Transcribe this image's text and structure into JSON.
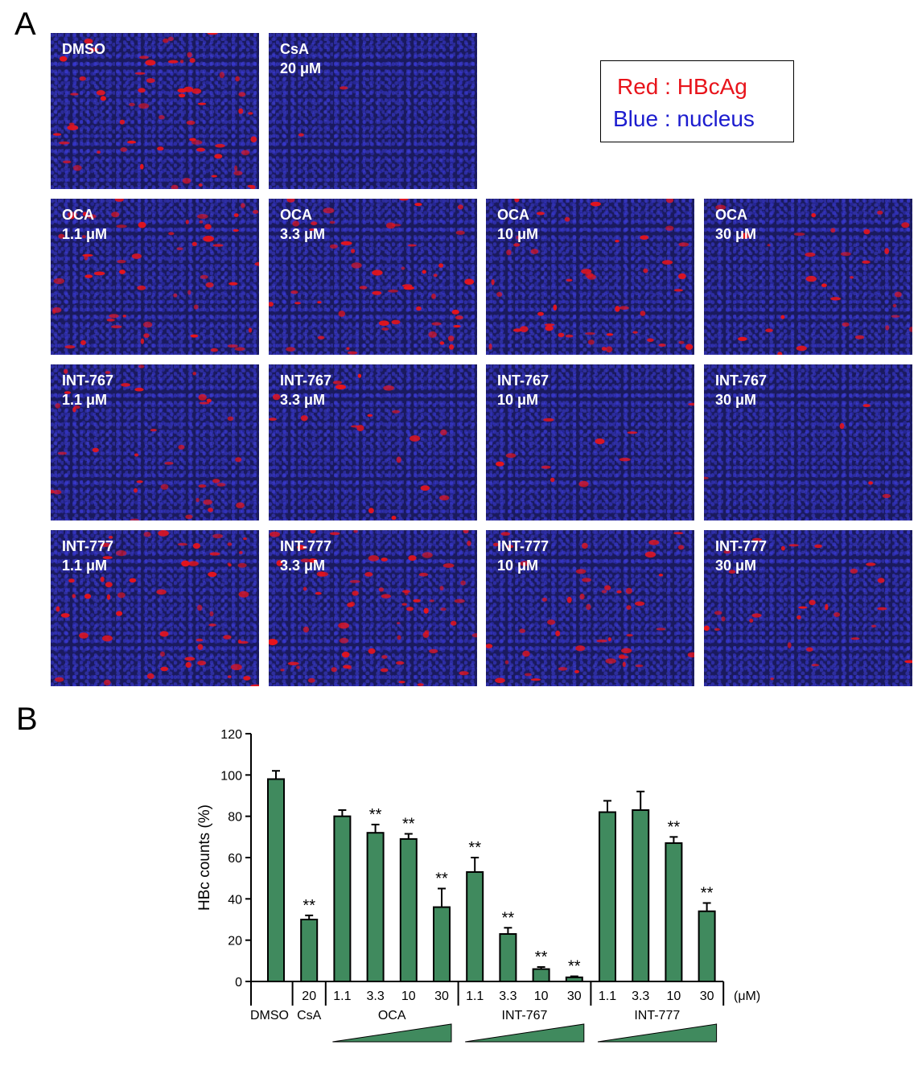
{
  "panel_a_label": "A",
  "panel_b_label": "B",
  "legend": {
    "red": "Red : HBcAg",
    "blue": "Blue : nucleus"
  },
  "colors": {
    "stain_red": "#e8141b",
    "stain_blue": "#1c1ccf",
    "bar": "#408a5e",
    "tile_bg": "#1a1a5e"
  },
  "tiles": [
    {
      "line1": "DMSO",
      "line2": ""
    },
    {
      "line1": "CsA",
      "line2": "20 μM"
    },
    {
      "line1": "OCA",
      "line2": "1.1 μM"
    },
    {
      "line1": "OCA",
      "line2": "3.3 μM"
    },
    {
      "line1": "OCA",
      "line2": "10 μM"
    },
    {
      "line1": "OCA",
      "line2": "30 μM"
    },
    {
      "line1": "INT-767",
      "line2": "1.1 μM"
    },
    {
      "line1": "INT-767",
      "line2": "3.3 μM"
    },
    {
      "line1": "INT-767",
      "line2": "10 μM"
    },
    {
      "line1": "INT-767",
      "line2": "30 μM"
    },
    {
      "line1": "INT-777",
      "line2": "1.1 μM"
    },
    {
      "line1": "INT-777",
      "line2": "3.3 μM"
    },
    {
      "line1": "INT-777",
      "line2": "10 μM"
    },
    {
      "line1": "INT-777",
      "line2": "30 μM"
    }
  ],
  "chart_data": {
    "type": "bar",
    "ylabel": "HBc counts (%)",
    "ylim": [
      0,
      120
    ],
    "yticks": [
      0,
      20,
      40,
      60,
      80,
      100,
      120
    ],
    "unit_label": "(μM)",
    "categories": [
      "",
      "20",
      "1.1",
      "3.3",
      "10",
      "30",
      "1.1",
      "3.3",
      "10",
      "30",
      "1.1",
      "3.3",
      "10",
      "30"
    ],
    "values": [
      98,
      30,
      80,
      72,
      69,
      36,
      53,
      23,
      6,
      2,
      82,
      83,
      67,
      34
    ],
    "errors": [
      4,
      2,
      3,
      4,
      2.5,
      9,
      7,
      3,
      1,
      0.5,
      5.5,
      9,
      3,
      4
    ],
    "significance": [
      "",
      "**",
      "",
      "**",
      "**",
      "**",
      "**",
      "**",
      "**",
      "**",
      "",
      "",
      "**",
      "**"
    ],
    "groups": [
      {
        "label": "DMSO",
        "gradient": false
      },
      {
        "label": "CsA",
        "gradient": false
      },
      {
        "label": "OCA",
        "gradient": true
      },
      {
        "label": "INT-767",
        "gradient": true
      },
      {
        "label": "INT-777",
        "gradient": true
      }
    ]
  }
}
